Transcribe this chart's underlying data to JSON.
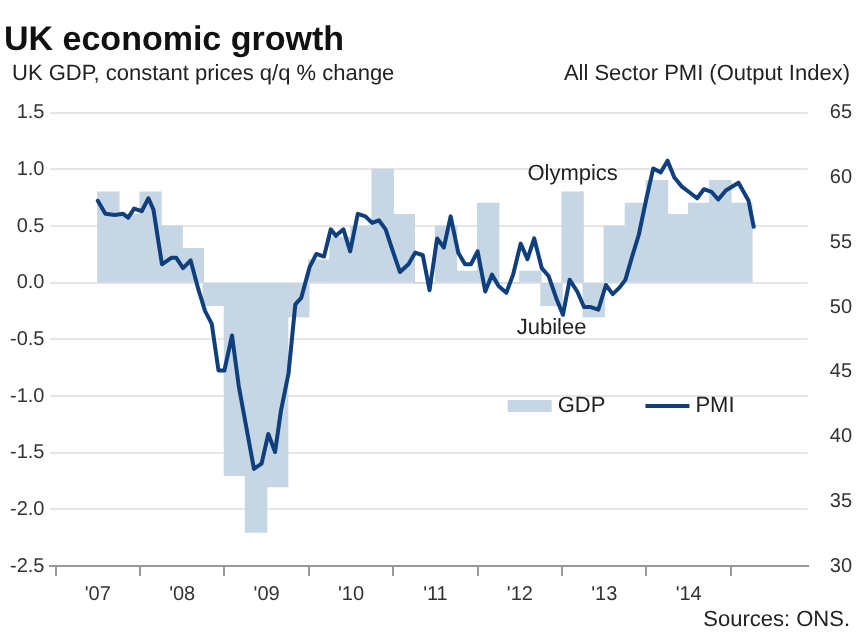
{
  "chart_data": {
    "type": "bar",
    "title": "UK economic growth",
    "ylabel": "UK GDP, constant prices q/q % change",
    "y2label": "All Sector PMI (Output Index)",
    "xlim": [
      2007,
      2014.85
    ],
    "xticks": [
      {
        "value": 2007,
        "label": "'07"
      },
      {
        "value": 2008,
        "label": "'08"
      },
      {
        "value": 2009,
        "label": "'09"
      },
      {
        "value": 2010,
        "label": "'10"
      },
      {
        "value": 2011,
        "label": "'11"
      },
      {
        "value": 2012,
        "label": "'12"
      },
      {
        "value": 2013,
        "label": "'13"
      },
      {
        "value": 2014,
        "label": "'14"
      }
    ],
    "ylim": [
      -2.5,
      1.5
    ],
    "yticks": [
      -2.5,
      {
        "value": -2,
        "label": "-2.0"
      },
      -1.5,
      {
        "value": -1,
        "label": "-1.0"
      },
      -0.5,
      {
        "value": 0,
        "label": "0.0"
      },
      0.5,
      {
        "value": 1,
        "label": "1.0"
      },
      1.5
    ],
    "y2lim": [
      30,
      65
    ],
    "y2ticks": [
      30,
      35,
      40,
      45,
      50,
      55,
      60,
      65
    ],
    "grid": "y",
    "legend": "bottom right",
    "series": [
      {
        "name": "GDP",
        "color": "#c6d6e4",
        "x": [
          2007.125,
          2007.375,
          2007.625,
          2007.875,
          2008.125,
          2008.375,
          2008.625,
          2008.875,
          2009.125,
          2009.375,
          2009.625,
          2009.875,
          2010.125,
          2010.375,
          2010.625,
          2010.875,
          2011.125,
          2011.375,
          2011.625,
          2011.875,
          2012.125,
          2012.375,
          2012.625,
          2012.875,
          2013.125,
          2013.375,
          2013.625,
          2013.875,
          2014.125,
          2014.375,
          2014.625
        ],
        "values": [
          0.8,
          0.6,
          0.8,
          0.5,
          0.3,
          -0.2,
          -1.7,
          -2.2,
          -1.8,
          -0.3,
          0.2,
          0.4,
          0.5,
          1.0,
          0.6,
          0.0,
          0.5,
          0.1,
          0.7,
          0.0,
          0.1,
          -0.2,
          0.8,
          -0.3,
          0.5,
          0.7,
          0.9,
          0.6,
          0.7,
          0.9,
          0.7
        ]
      },
      {
        "name": "PMI",
        "type": "line",
        "axis": "y2",
        "color": "#0f3f7c",
        "x": [
          2007.0,
          2007.09,
          2007.2,
          2007.3,
          2007.36,
          2007.43,
          2007.52,
          2007.6,
          2007.66,
          2007.76,
          2007.87,
          2007.93,
          2008.01,
          2008.1,
          2008.19,
          2008.27,
          2008.35,
          2008.43,
          2008.5,
          2008.59,
          2008.67,
          2008.85,
          2008.94,
          2009.02,
          2009.1,
          2009.17,
          2009.26,
          2009.34,
          2009.41,
          2009.51,
          2009.59,
          2009.68,
          2009.76,
          2009.82,
          2009.91,
          2009.99,
          2010.08,
          2010.17,
          2010.25,
          2010.33,
          2010.41,
          2010.48,
          2010.58,
          2010.68,
          2010.76,
          2010.85,
          2010.93,
          2011.02,
          2011.1,
          2011.18,
          2011.27,
          2011.35,
          2011.42,
          2011.5,
          2011.59,
          2011.67,
          2011.75,
          2011.84,
          2011.92,
          2012.01,
          2012.09,
          2012.17,
          2012.26,
          2012.34,
          2012.43,
          2012.51,
          2012.59,
          2012.68,
          2012.76,
          2012.84,
          2012.93,
          2013.02,
          2013.1,
          2013.18,
          2013.25,
          2013.33,
          2013.41,
          2013.5,
          2013.58,
          2013.67,
          2013.75,
          2013.83,
          2013.92,
          2014.0,
          2014.1,
          2014.18,
          2014.27,
          2014.35,
          2014.44,
          2014.59,
          2014.71,
          2014.77
        ],
        "values": [
          58.2,
          57.2,
          57.1,
          57.2,
          56.9,
          57.6,
          57.4,
          58.4,
          57.5,
          53.3,
          53.8,
          53.8,
          53.0,
          53.6,
          51.4,
          49.7,
          48.7,
          45.1,
          45.1,
          47.8,
          43.9,
          37.5,
          37.9,
          40.2,
          38.8,
          42.0,
          44.9,
          50.2,
          50.7,
          53.1,
          54.1,
          53.9,
          56.0,
          55.5,
          56.0,
          54.3,
          57.2,
          57.0,
          56.5,
          56.7,
          56.0,
          54.6,
          52.7,
          53.3,
          54.2,
          54.0,
          51.3,
          55.3,
          54.6,
          57.0,
          54.2,
          53.3,
          53.3,
          54.3,
          51.2,
          52.5,
          51.6,
          51.1,
          52.5,
          54.9,
          53.7,
          55.3,
          53.0,
          52.4,
          50.7,
          49.4,
          52.1,
          51.2,
          50.0,
          50.0,
          49.8,
          51.7,
          51.0,
          51.5,
          52.1,
          53.9,
          55.6,
          58.4,
          60.7,
          60.4,
          61.3,
          60.0,
          59.3,
          58.9,
          58.4,
          59.1,
          58.9,
          58.3,
          59.0,
          59.6,
          58.2,
          56.2
        ]
      }
    ],
    "annotations": [
      {
        "text": "Olympics",
        "x": 2012.625,
        "y": 0.8
      },
      {
        "text": "Jubilee",
        "x": 2012.375,
        "y": -0.2
      },
      "Sources: ONS."
    ]
  }
}
